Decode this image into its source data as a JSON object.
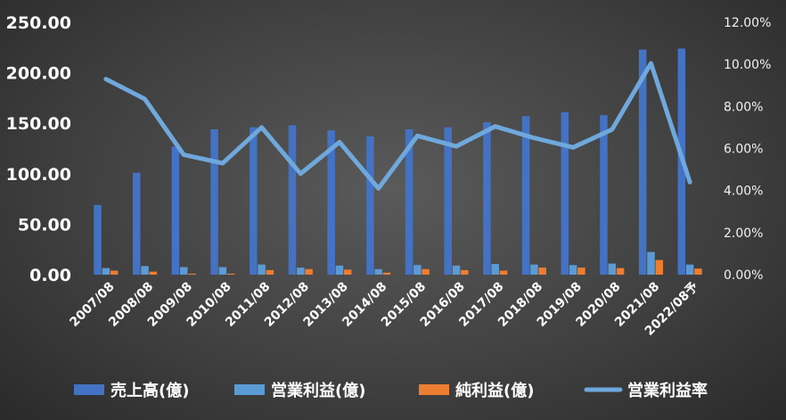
{
  "chart_data": {
    "type": "bar",
    "categories": [
      "2007/08",
      "2008/08",
      "2009/08",
      "2010/08",
      "2011/08",
      "2012/08",
      "2013/08",
      "2014/08",
      "2015/08",
      "2016/08",
      "2017/08",
      "2018/08",
      "2019/08",
      "2020/08",
      "2021/08",
      "2022/08予"
    ],
    "series": [
      {
        "name": "売上高(億)",
        "kind": "bar",
        "axis": "left",
        "color": "#4472c4",
        "values": [
          69,
          101,
          127,
          144,
          146,
          148,
          143,
          137,
          144,
          146,
          151,
          157,
          161,
          158,
          223,
          224
        ]
      },
      {
        "name": "営業利益(億)",
        "kind": "bar",
        "axis": "left",
        "color": "#5b9bd5",
        "values": [
          6.5,
          8.5,
          7.5,
          7.5,
          10,
          7,
          9,
          5.5,
          9.5,
          9,
          10.5,
          10,
          9.5,
          11,
          22.5,
          10
        ]
      },
      {
        "name": "純利益(億)",
        "kind": "bar",
        "axis": "left",
        "color": "#ed7d31",
        "values": [
          4,
          3,
          1,
          1,
          4.5,
          5.5,
          5,
          2,
          5.5,
          4.5,
          4,
          7,
          7,
          6.5,
          14.5,
          6
        ]
      },
      {
        "name": "営業利益率",
        "kind": "line",
        "axis": "right",
        "color": "#6fa8dc",
        "values": [
          9.3,
          8.35,
          5.7,
          5.3,
          7.0,
          4.8,
          6.3,
          4.1,
          6.6,
          6.1,
          7.05,
          6.5,
          6.05,
          6.9,
          10.05,
          4.4
        ]
      }
    ],
    "y_left": {
      "min": 0,
      "max": 250,
      "step": 50,
      "tick_labels": [
        "0.00",
        "50.00",
        "100.00",
        "150.00",
        "200.00",
        "250.00"
      ]
    },
    "y_right": {
      "min": 0,
      "max": 12,
      "step": 2,
      "tick_labels": [
        "0.00%",
        "2.00%",
        "4.00%",
        "6.00%",
        "8.00%",
        "10.00%",
        "12.00%"
      ]
    },
    "grid": false,
    "legend": "bottom",
    "colors": {
      "background_center": "#5a5a5a",
      "background_edge": "#262626",
      "text": "#ffffff"
    }
  }
}
